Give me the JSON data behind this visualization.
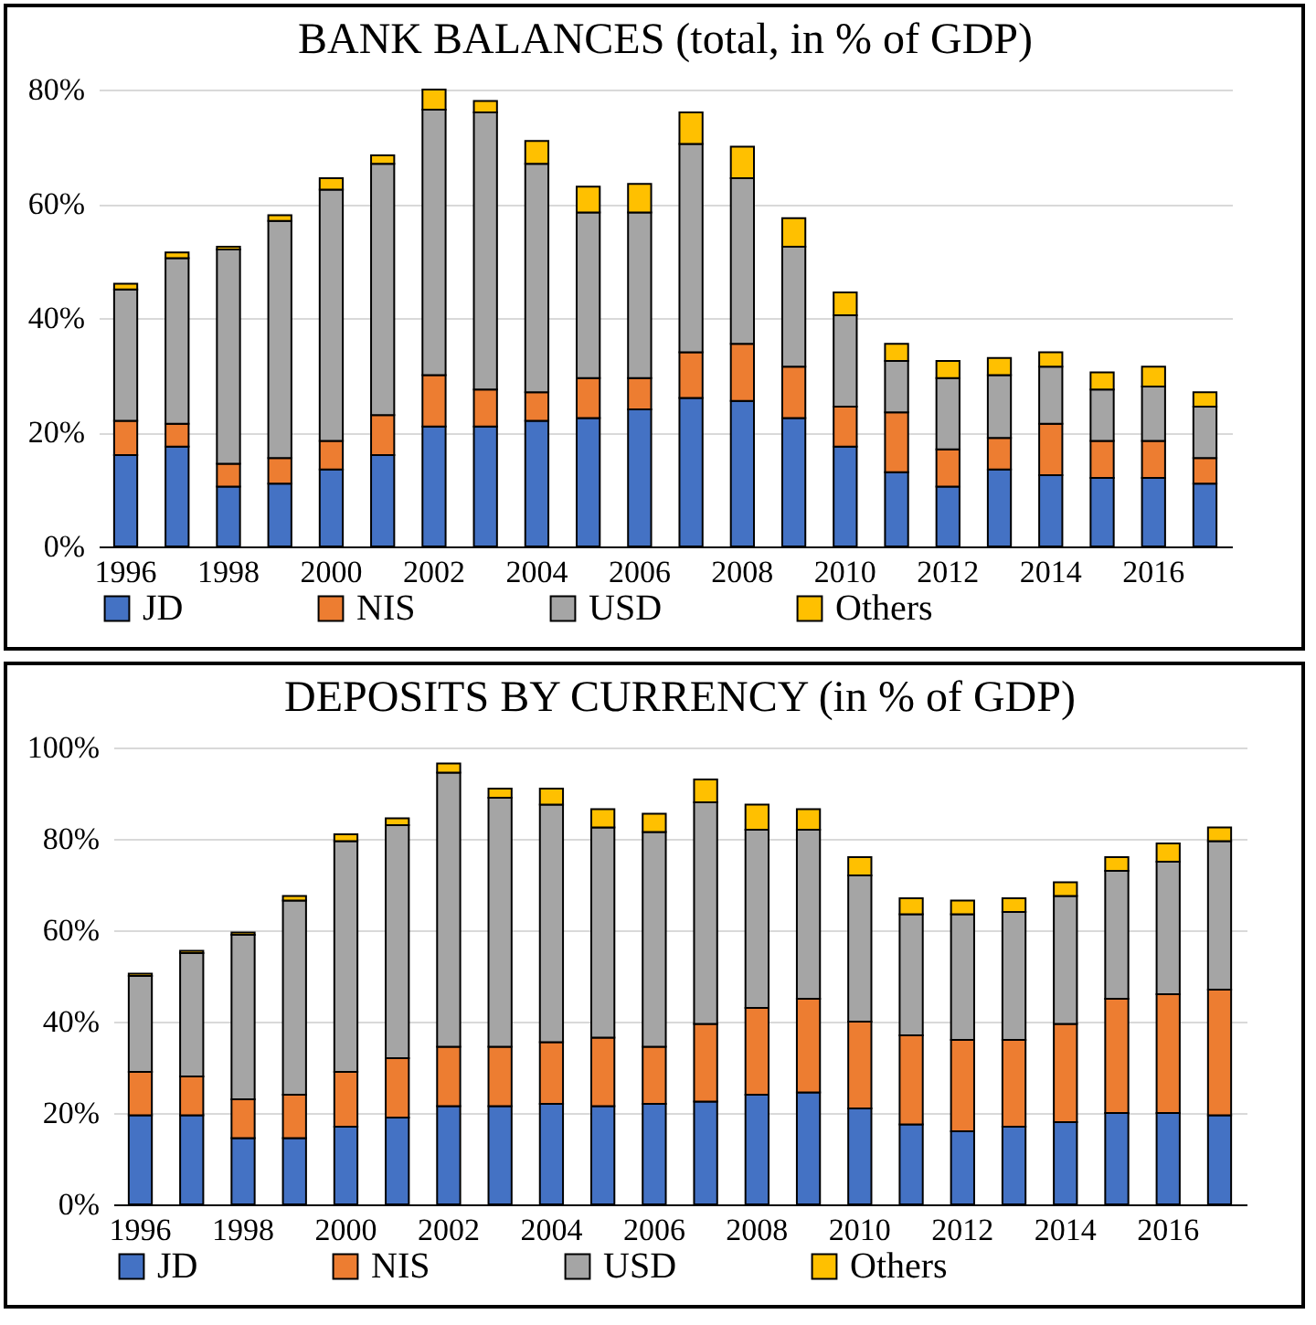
{
  "chart_data": [
    {
      "type": "bar",
      "title": "BANK BALANCES  (total, in % of GDP)",
      "stacked": true,
      "grid": "y",
      "legend": "bottom",
      "categories": [
        "1996",
        null,
        "1998",
        null,
        "2000",
        null,
        "2002",
        null,
        "2004",
        null,
        "2006",
        null,
        "2008",
        null,
        "2010",
        null,
        "2012",
        null,
        "2014",
        null,
        "2016",
        null
      ],
      "ylim": [
        0,
        80
      ],
      "yticks": [
        {
          "value": 0,
          "label": "0%"
        },
        {
          "value": 20,
          "label": "20%"
        },
        {
          "value": 40,
          "label": "40%"
        },
        {
          "value": 60,
          "label": "60%"
        },
        {
          "value": 80,
          "label": "80%"
        }
      ],
      "series": [
        {
          "name": "JD",
          "color": "#4472c4",
          "values": [
            16,
            17.5,
            10.5,
            11,
            13.5,
            16,
            21,
            21,
            22,
            22.5,
            24,
            26,
            25.5,
            22.5,
            17.5,
            13,
            10.5,
            13.5,
            12.5,
            12,
            12,
            11
          ]
        },
        {
          "name": "NIS",
          "color": "#ed7d31",
          "values": [
            6,
            4,
            4,
            4.5,
            5,
            7,
            9,
            6.5,
            5,
            7,
            5.5,
            8,
            10,
            9,
            7,
            10.5,
            6.5,
            5.5,
            9,
            6.5,
            6.5,
            4.5
          ]
        },
        {
          "name": "USD",
          "color": "#a5a5a5",
          "values": [
            23,
            29,
            37.5,
            41.5,
            44,
            44,
            46.5,
            48.5,
            40,
            29,
            29,
            36.5,
            29,
            21,
            16,
            9,
            12.5,
            11,
            10,
            9,
            9.5,
            9
          ]
        },
        {
          "name": "Others",
          "color": "#ffc000",
          "values": [
            1,
            1,
            0.5,
            1,
            2,
            1.5,
            3.5,
            2,
            4,
            4.5,
            5,
            5.5,
            5.5,
            5,
            4,
            3,
            3,
            3,
            2.5,
            3,
            3.5,
            2.5
          ]
        }
      ]
    },
    {
      "type": "bar",
      "title": "DEPOSITS  BY CURRENCY (in % of GDP)",
      "stacked": true,
      "grid": "y",
      "legend": "bottom",
      "categories": [
        "1996",
        null,
        "1998",
        null,
        "2000",
        null,
        "2002",
        null,
        "2004",
        null,
        "2006",
        null,
        "2008",
        null,
        "2010",
        null,
        "2012",
        null,
        "2014",
        null,
        "2016",
        null
      ],
      "ylim": [
        0,
        100
      ],
      "yticks": [
        {
          "value": 0,
          "label": "0%"
        },
        {
          "value": 20,
          "label": "20%"
        },
        {
          "value": 40,
          "label": "40%"
        },
        {
          "value": 60,
          "label": "60%"
        },
        {
          "value": 80,
          "label": "80%"
        },
        {
          "value": 100,
          "label": "100%"
        }
      ],
      "series": [
        {
          "name": "JD",
          "color": "#4472c4",
          "values": [
            19.5,
            19.5,
            14.5,
            14.5,
            17,
            19,
            21.5,
            21.5,
            22,
            21.5,
            22,
            22.5,
            24,
            24.5,
            21,
            17.5,
            16,
            17,
            18,
            20,
            20,
            19.5
          ]
        },
        {
          "name": "NIS",
          "color": "#ed7d31",
          "values": [
            9.5,
            8.5,
            8.5,
            9.5,
            12,
            13,
            13,
            13,
            13.5,
            15,
            12.5,
            17,
            19,
            20.5,
            19,
            19.5,
            20,
            19,
            21.5,
            25,
            26,
            27.5
          ]
        },
        {
          "name": "USD",
          "color": "#a5a5a5",
          "values": [
            21,
            27,
            36,
            42.5,
            50.5,
            51,
            60,
            54.5,
            52,
            46,
            47,
            48.5,
            39,
            37,
            32,
            26.5,
            27.5,
            28,
            28,
            28,
            29,
            32.5
          ]
        },
        {
          "name": "Others",
          "color": "#ffc000",
          "values": [
            0.5,
            0.5,
            0.5,
            1,
            1.5,
            1.5,
            2,
            2,
            3.5,
            4,
            4,
            5,
            5.5,
            4.5,
            4,
            3.5,
            3,
            3,
            3,
            3,
            4,
            3
          ]
        }
      ]
    }
  ]
}
